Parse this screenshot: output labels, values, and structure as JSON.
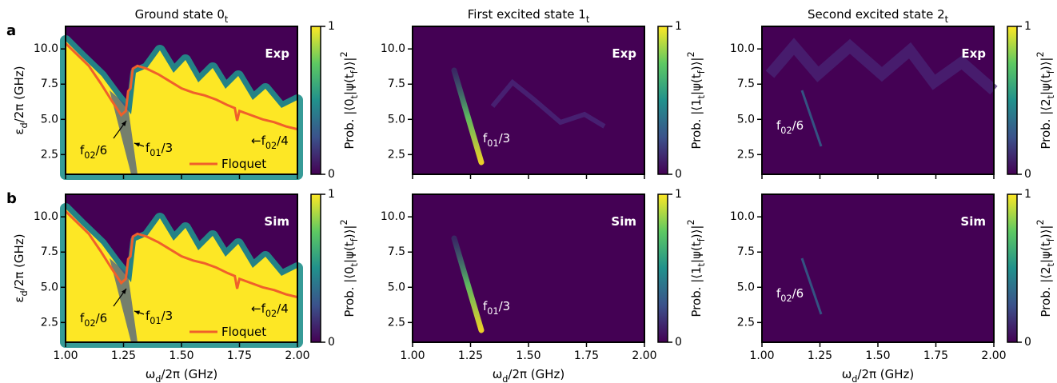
{
  "chart_data": [
    {
      "type": "heatmap",
      "panel_label": "a",
      "title": "Ground state 0_t",
      "tag": "Exp",
      "ylabel": "ε_d/2π (GHz)",
      "xlim": [
        1.0,
        2.0
      ],
      "xticks": [
        1,
        1.25,
        1.5,
        1.75,
        2
      ],
      "ylim": [
        1.1,
        11.6
      ],
      "yticks": [
        2.5,
        {
          "value": 5,
          "label": "5.0"
        },
        7.5,
        {
          "value": 10,
          "label": "10.0"
        }
      ],
      "colorbar": {
        "label": "Prob. |⟨0_t|ψ(t_f)⟩|^2",
        "lim": [
          0,
          1
        ],
        "ticks": [
          0,
          1
        ],
        "colormap": "viridis"
      },
      "annotations": [
        "f_02/6",
        "f_01/3",
        "←f_02/4"
      ],
      "series": [
        {
          "name": "Floquet",
          "color": "#f0602a",
          "x": [
            1.0,
            1.05,
            1.1,
            1.15,
            1.2,
            1.24,
            1.26,
            1.27,
            1.28,
            1.29,
            1.31,
            1.35,
            1.4,
            1.45,
            1.5,
            1.55,
            1.6,
            1.65,
            1.7,
            1.73,
            1.74,
            1.75,
            1.8,
            1.85,
            1.9,
            1.95,
            2.0
          ],
          "values": [
            10.4,
            9.6,
            8.8,
            7.6,
            6.3,
            5.3,
            5.6,
            7.0,
            7.2,
            8.6,
            8.8,
            8.6,
            8.2,
            7.7,
            7.2,
            6.9,
            6.7,
            6.4,
            6.0,
            5.8,
            4.9,
            5.6,
            5.3,
            5.0,
            4.8,
            4.5,
            4.3
          ]
        }
      ]
    },
    {
      "type": "heatmap",
      "title": "First excited state 1_t",
      "tag": "Exp",
      "xlim": [
        1.0,
        2.0
      ],
      "xticks": [
        1,
        1.25,
        1.5,
        1.75,
        2
      ],
      "ylim": [
        1.1,
        11.6
      ],
      "yticks": [
        2.5,
        {
          "value": 5,
          "label": "5.0"
        },
        7.5,
        {
          "value": 10,
          "label": "10.0"
        }
      ],
      "colorbar": {
        "label": "Prob. |⟨1_t|ψ(t_f)⟩|^2",
        "lim": [
          0,
          1
        ],
        "ticks": [
          0,
          1
        ],
        "colormap": "viridis"
      },
      "annotations": [
        "f_01/3"
      ]
    },
    {
      "type": "heatmap",
      "title": "Second excited state 2_t",
      "tag": "Exp",
      "xlim": [
        1.0,
        2.0
      ],
      "xticks": [
        1,
        1.25,
        1.5,
        1.75,
        2
      ],
      "ylim": [
        1.1,
        11.6
      ],
      "yticks": [
        2.5,
        {
          "value": 5,
          "label": "5.0"
        },
        7.5,
        {
          "value": 10,
          "label": "10.0"
        }
      ],
      "colorbar": {
        "label": "Prob. |⟨2_t|ψ(t_f)⟩|^2",
        "lim": [
          0,
          1
        ],
        "ticks": [
          0,
          1
        ],
        "colormap": "viridis"
      },
      "annotations": [
        "f_02/6"
      ]
    },
    {
      "type": "heatmap",
      "panel_label": "b",
      "tag": "Sim",
      "xlabel": "ω_d/2π (GHz)",
      "ylabel": "ε_d/2π (GHz)",
      "xlim": [
        1.0,
        2.0
      ],
      "xticks": [
        {
          "value": 1,
          "label": "1.00"
        },
        1.25,
        {
          "value": 1.5,
          "label": "1.50"
        },
        1.75,
        {
          "value": 2,
          "label": "2.00"
        }
      ],
      "ylim": [
        1.1,
        11.6
      ],
      "yticks": [
        2.5,
        {
          "value": 5,
          "label": "5.0"
        },
        7.5,
        {
          "value": 10,
          "label": "10.0"
        }
      ],
      "colorbar": {
        "label": "Prob. |⟨0_t|ψ(t_f)⟩|^2",
        "lim": [
          0,
          1
        ],
        "ticks": [
          0,
          1
        ],
        "colormap": "viridis"
      },
      "annotations": [
        "f_02/6",
        "f_01/3",
        "←f_02/4"
      ],
      "series": [
        {
          "name": "Floquet",
          "color": "#f0602a",
          "x": [
            1.0,
            1.05,
            1.1,
            1.15,
            1.2,
            1.24,
            1.26,
            1.27,
            1.28,
            1.29,
            1.31,
            1.35,
            1.4,
            1.45,
            1.5,
            1.55,
            1.6,
            1.65,
            1.7,
            1.73,
            1.74,
            1.75,
            1.8,
            1.85,
            1.9,
            1.95,
            2.0
          ],
          "values": [
            10.4,
            9.6,
            8.8,
            7.6,
            6.3,
            5.3,
            5.6,
            7.0,
            7.2,
            8.6,
            8.8,
            8.6,
            8.2,
            7.7,
            7.2,
            6.9,
            6.7,
            6.4,
            6.0,
            5.8,
            4.9,
            5.6,
            5.3,
            5.0,
            4.8,
            4.5,
            4.3
          ]
        }
      ]
    },
    {
      "type": "heatmap",
      "tag": "Sim",
      "xlabel": "ω_d/2π (GHz)",
      "xlim": [
        1.0,
        2.0
      ],
      "xticks": [
        {
          "value": 1,
          "label": "1.00"
        },
        1.25,
        {
          "value": 1.5,
          "label": "1.50"
        },
        1.75,
        {
          "value": 2,
          "label": "2.00"
        }
      ],
      "ylim": [
        1.1,
        11.6
      ],
      "yticks": [
        2.5,
        {
          "value": 5,
          "label": "5.0"
        },
        7.5,
        {
          "value": 10,
          "label": "10.0"
        }
      ],
      "colorbar": {
        "label": "Prob. |⟨1_t|ψ(t_f)⟩|^2",
        "lim": [
          0,
          1
        ],
        "ticks": [
          0,
          1
        ],
        "colormap": "viridis"
      },
      "annotations": [
        "f_01/3"
      ]
    },
    {
      "type": "heatmap",
      "tag": "Sim",
      "xlabel": "ω_d/2π (GHz)",
      "xlim": [
        1.0,
        2.0
      ],
      "xticks": [
        {
          "value": 1,
          "label": "1.00"
        },
        1.25,
        {
          "value": 1.5,
          "label": "1.50"
        },
        1.75,
        {
          "value": 2,
          "label": "2.00"
        }
      ],
      "ylim": [
        1.1,
        11.6
      ],
      "yticks": [
        2.5,
        {
          "value": 5,
          "label": "5.0"
        },
        7.5,
        {
          "value": 10,
          "label": "10.0"
        }
      ],
      "colorbar": {
        "label": "Prob. |⟨2_t|ψ(t_f)⟩|^2",
        "lim": [
          0,
          1
        ],
        "ticks": [
          0,
          1
        ],
        "colormap": "viridis"
      },
      "annotations": [
        "f_02/6"
      ]
    }
  ]
}
